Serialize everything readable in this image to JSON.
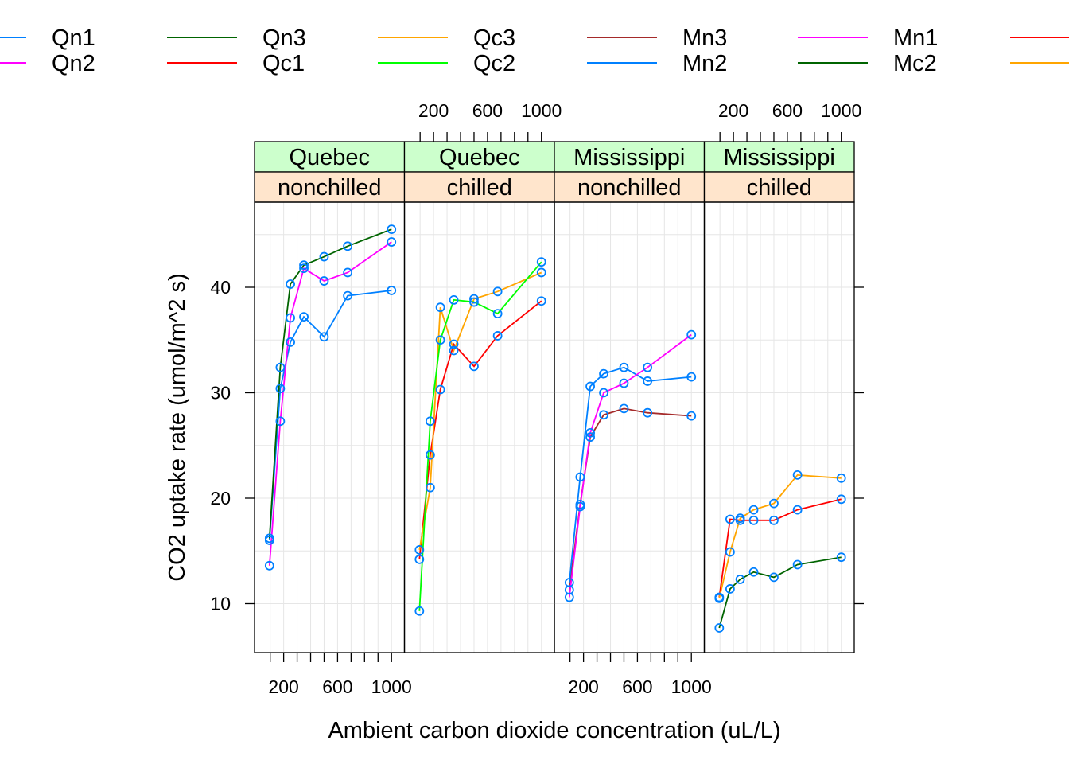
{
  "chart_data": {
    "type": "line",
    "xlabel": "Ambient carbon dioxide concentration (uL/L)",
    "ylabel": "CO2 uptake rate (umol/m^2 s)",
    "xlim": [
      0,
      1050
    ],
    "ylim": [
      5,
      48
    ],
    "x_ticks": [
      200,
      600,
      1000
    ],
    "x_tick_labels": [
      "200",
      "600",
      "1000"
    ],
    "x_minor_ticks": [
      100,
      200,
      300,
      400,
      500,
      600,
      700,
      800,
      900,
      1000
    ],
    "y_ticks": [
      10,
      20,
      30,
      40
    ],
    "y_tick_labels": [
      "10",
      "20",
      "30",
      "40"
    ],
    "grid": true,
    "colors": {
      "grid": "#e6e6e6",
      "strip_top": "#ccffcc",
      "strip_bottom": "#ffe5cc",
      "points": "#0080ff"
    },
    "legend": {
      "position": "top",
      "entries": [
        {
          "name": "Qn1",
          "color": "#0080ff"
        },
        {
          "name": "Qn2",
          "color": "#ff00ff"
        },
        {
          "name": "Qn3",
          "color": "#006400"
        },
        {
          "name": "Qc1",
          "color": "#ff0000"
        },
        {
          "name": "Qc3",
          "color": "#ffa500"
        },
        {
          "name": "Qc2",
          "color": "#00ff00"
        },
        {
          "name": "Mn3",
          "color": "#a52a2a"
        },
        {
          "name": "Mn2",
          "color": "#0080ff"
        },
        {
          "name": "Mn1",
          "color": "#ff00ff"
        },
        {
          "name": "Mc2",
          "color": "#006400"
        },
        {
          "name": "",
          "color": "#ff0000"
        },
        {
          "name": "",
          "color": "#ffa500"
        }
      ]
    },
    "panels": [
      {
        "strip_top": "Quebec",
        "strip_bottom": "nonchilled",
        "series": [
          {
            "name": "Qn1",
            "color": "#0080ff",
            "x": [
              95,
              175,
              250,
              350,
              500,
              675,
              1000
            ],
            "y": [
              16.0,
              30.4,
              34.8,
              37.2,
              35.3,
              39.2,
              39.7
            ]
          },
          {
            "name": "Qn2",
            "color": "#ff00ff",
            "x": [
              95,
              175,
              250,
              350,
              500,
              675,
              1000
            ],
            "y": [
              13.6,
              27.3,
              37.1,
              41.8,
              40.6,
              41.4,
              44.3
            ]
          },
          {
            "name": "Qn3",
            "color": "#006400",
            "x": [
              95,
              175,
              250,
              350,
              500,
              675,
              1000
            ],
            "y": [
              16.2,
              32.4,
              40.3,
              42.1,
              42.9,
              43.9,
              45.5
            ]
          }
        ]
      },
      {
        "strip_top": "Quebec",
        "strip_bottom": "chilled",
        "series": [
          {
            "name": "Qc1",
            "color": "#ff0000",
            "x": [
              95,
              175,
              250,
              350,
              500,
              675,
              1000
            ],
            "y": [
              14.2,
              24.1,
              30.3,
              34.6,
              32.5,
              35.4,
              38.7
            ]
          },
          {
            "name": "Qc3",
            "color": "#ffa500",
            "x": [
              95,
              175,
              250,
              350,
              500,
              675,
              1000
            ],
            "y": [
              15.1,
              21.0,
              38.1,
              34.0,
              38.9,
              39.6,
              41.4
            ]
          },
          {
            "name": "Qc2",
            "color": "#00ff00",
            "x": [
              95,
              175,
              250,
              350,
              500,
              675,
              1000
            ],
            "y": [
              9.3,
              27.3,
              35.0,
              38.8,
              38.6,
              37.5,
              42.4
            ]
          }
        ]
      },
      {
        "strip_top": "Mississippi",
        "strip_bottom": "nonchilled",
        "series": [
          {
            "name": "Mn3",
            "color": "#a52a2a",
            "x": [
              95,
              175,
              250,
              350,
              500,
              675,
              1000
            ],
            "y": [
              11.3,
              19.4,
              25.8,
              27.9,
              28.5,
              28.1,
              27.8
            ]
          },
          {
            "name": "Mn2",
            "color": "#0080ff",
            "x": [
              95,
              175,
              250,
              350,
              500,
              675,
              1000
            ],
            "y": [
              12.0,
              22.0,
              30.6,
              31.8,
              32.4,
              31.1,
              31.5
            ]
          },
          {
            "name": "Mn1",
            "color": "#ff00ff",
            "x": [
              95,
              175,
              250,
              350,
              500,
              675,
              1000
            ],
            "y": [
              10.6,
              19.2,
              26.2,
              30.0,
              30.9,
              32.4,
              35.5
            ]
          }
        ]
      },
      {
        "strip_top": "Mississippi",
        "strip_bottom": "chilled",
        "series": [
          {
            "name": "Mc2",
            "color": "#006400",
            "x": [
              95,
              175,
              250,
              350,
              500,
              675,
              1000
            ],
            "y": [
              7.7,
              11.4,
              12.3,
              13.0,
              12.5,
              13.7,
              14.4
            ]
          },
          {
            "name": "",
            "color": "#ff0000",
            "x": [
              95,
              175,
              250,
              350,
              500,
              675,
              1000
            ],
            "y": [
              10.6,
              18.0,
              17.9,
              17.9,
              17.9,
              18.9,
              19.9
            ]
          },
          {
            "name": "",
            "color": "#ffa500",
            "x": [
              95,
              175,
              250,
              350,
              500,
              675,
              1000
            ],
            "y": [
              10.5,
              14.9,
              18.1,
              18.9,
              19.5,
              22.2,
              21.9
            ]
          }
        ]
      }
    ]
  }
}
